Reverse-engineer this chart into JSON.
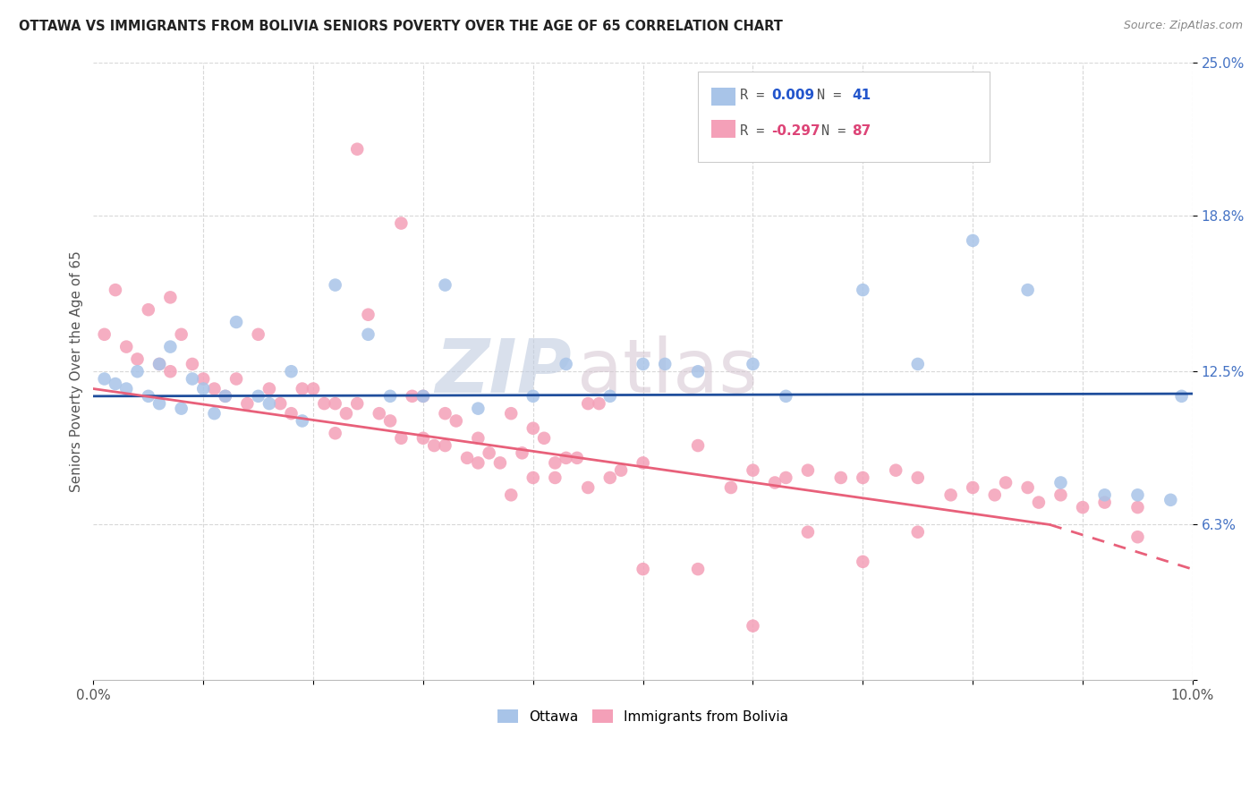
{
  "title": "OTTAWA VS IMMIGRANTS FROM BOLIVIA SENIORS POVERTY OVER THE AGE OF 65 CORRELATION CHART",
  "source": "Source: ZipAtlas.com",
  "ylabel": "Seniors Poverty Over the Age of 65",
  "xlim": [
    0.0,
    0.1
  ],
  "ylim": [
    0.0,
    0.25
  ],
  "ottawa_color": "#a8c4e8",
  "bolivia_color": "#f4a0b8",
  "ottawa_line_color": "#1f4e9c",
  "bolivia_line_color": "#e8607a",
  "watermark": "ZIPatlas",
  "watermark_zip_color": "#c8d4ea",
  "watermark_atlas_color": "#d8c8d8",
  "background_color": "#ffffff",
  "grid_color": "#d8d8d8",
  "ottawa_x": [
    0.001,
    0.002,
    0.003,
    0.004,
    0.005,
    0.006,
    0.006,
    0.007,
    0.008,
    0.009,
    0.01,
    0.011,
    0.012,
    0.013,
    0.015,
    0.016,
    0.018,
    0.019,
    0.022,
    0.025,
    0.027,
    0.03,
    0.032,
    0.035,
    0.04,
    0.043,
    0.047,
    0.05,
    0.052,
    0.055,
    0.06,
    0.063,
    0.07,
    0.075,
    0.08,
    0.085,
    0.088,
    0.092,
    0.095,
    0.098,
    0.099
  ],
  "ottawa_y": [
    0.122,
    0.12,
    0.118,
    0.125,
    0.115,
    0.128,
    0.112,
    0.135,
    0.11,
    0.122,
    0.118,
    0.108,
    0.115,
    0.145,
    0.115,
    0.112,
    0.125,
    0.105,
    0.16,
    0.14,
    0.115,
    0.115,
    0.16,
    0.11,
    0.115,
    0.128,
    0.115,
    0.128,
    0.128,
    0.125,
    0.128,
    0.115,
    0.158,
    0.128,
    0.178,
    0.158,
    0.08,
    0.075,
    0.075,
    0.073,
    0.115
  ],
  "bolivia_x": [
    0.001,
    0.002,
    0.003,
    0.004,
    0.005,
    0.006,
    0.007,
    0.007,
    0.008,
    0.009,
    0.01,
    0.011,
    0.012,
    0.013,
    0.014,
    0.015,
    0.016,
    0.017,
    0.018,
    0.019,
    0.02,
    0.021,
    0.022,
    0.022,
    0.023,
    0.024,
    0.025,
    0.026,
    0.027,
    0.028,
    0.029,
    0.03,
    0.031,
    0.032,
    0.033,
    0.034,
    0.035,
    0.036,
    0.037,
    0.038,
    0.039,
    0.04,
    0.041,
    0.042,
    0.043,
    0.044,
    0.045,
    0.046,
    0.047,
    0.048,
    0.024,
    0.028,
    0.03,
    0.032,
    0.035,
    0.038,
    0.04,
    0.042,
    0.045,
    0.05,
    0.055,
    0.058,
    0.06,
    0.062,
    0.063,
    0.065,
    0.068,
    0.07,
    0.073,
    0.075,
    0.078,
    0.08,
    0.082,
    0.083,
    0.085,
    0.086,
    0.088,
    0.09,
    0.092,
    0.095,
    0.05,
    0.055,
    0.06,
    0.065,
    0.07,
    0.075,
    0.095
  ],
  "bolivia_y": [
    0.14,
    0.158,
    0.135,
    0.13,
    0.15,
    0.128,
    0.155,
    0.125,
    0.14,
    0.128,
    0.122,
    0.118,
    0.115,
    0.122,
    0.112,
    0.14,
    0.118,
    0.112,
    0.108,
    0.118,
    0.118,
    0.112,
    0.112,
    0.1,
    0.108,
    0.112,
    0.148,
    0.108,
    0.105,
    0.098,
    0.115,
    0.098,
    0.095,
    0.095,
    0.105,
    0.09,
    0.098,
    0.092,
    0.088,
    0.108,
    0.092,
    0.102,
    0.098,
    0.082,
    0.09,
    0.09,
    0.078,
    0.112,
    0.082,
    0.085,
    0.215,
    0.185,
    0.115,
    0.108,
    0.088,
    0.075,
    0.082,
    0.088,
    0.112,
    0.088,
    0.095,
    0.078,
    0.085,
    0.08,
    0.082,
    0.085,
    0.082,
    0.082,
    0.085,
    0.082,
    0.075,
    0.078,
    0.075,
    0.08,
    0.078,
    0.072,
    0.075,
    0.07,
    0.072,
    0.07,
    0.045,
    0.045,
    0.022,
    0.06,
    0.048,
    0.06,
    0.058
  ]
}
